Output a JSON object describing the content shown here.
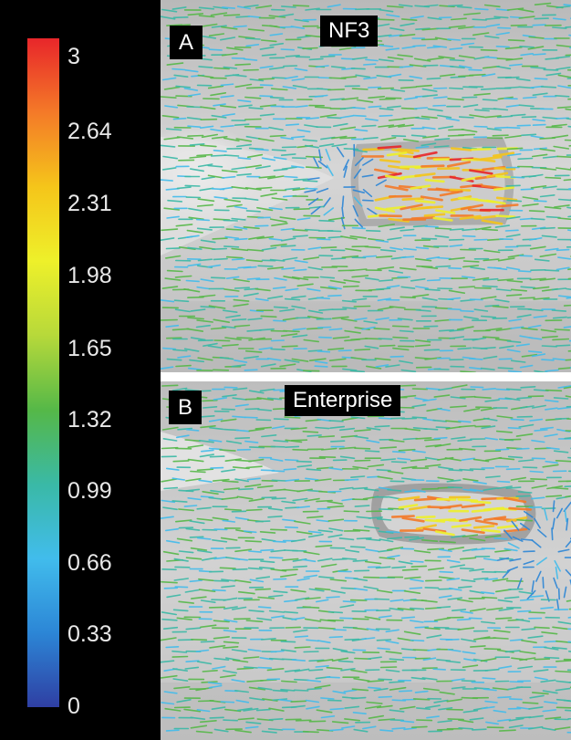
{
  "colorbar": {
    "ticks": [
      "3",
      "2.64",
      "2.31",
      "1.98",
      "1.65",
      "1.32",
      "0.99",
      "0.66",
      "0.33",
      "0"
    ],
    "colors": [
      "#e8262a",
      "#f47a28",
      "#f5c51a",
      "#eef02a",
      "#b7d93a",
      "#55b848",
      "#3ab9a6",
      "#41bcec",
      "#2c86d6",
      "#2f3fa3"
    ],
    "min": 0,
    "max": 3
  },
  "panels": [
    {
      "letter": "A",
      "title": "NF3"
    },
    {
      "letter": "B",
      "title": "Enterprise"
    }
  ]
}
